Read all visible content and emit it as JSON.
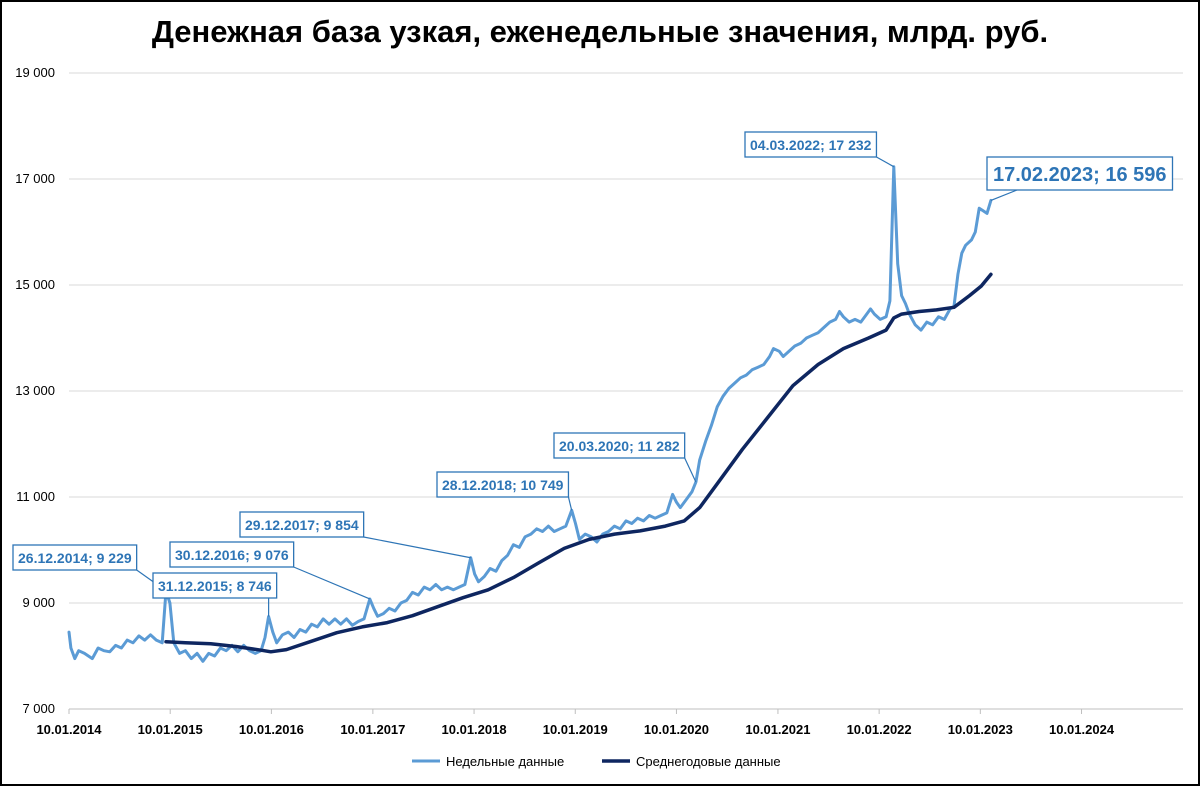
{
  "chart_data": {
    "type": "line",
    "title": "Денежная база узкая, еженедельные значения, млрд. руб.",
    "xlabel": "",
    "ylabel": "",
    "ylim": [
      7000,
      19000
    ],
    "y_ticks": [
      7000,
      9000,
      11000,
      13000,
      15000,
      17000,
      19000
    ],
    "y_tick_labels": [
      "7 000",
      "9 000",
      "11 000",
      "13 000",
      "15 000",
      "17 000",
      "19 000"
    ],
    "x_range": [
      "2014-01-10",
      "2025-01-10"
    ],
    "x_ticks": [
      "2014-01-10",
      "2015-01-10",
      "2016-01-10",
      "2017-01-10",
      "2018-01-10",
      "2019-01-10",
      "2020-01-10",
      "2021-01-10",
      "2022-01-10",
      "2023-01-10",
      "2024-01-10"
    ],
    "x_tick_labels": [
      "10.01.2014",
      "10.01.2015",
      "10.01.2016",
      "10.01.2017",
      "10.01.2018",
      "10.01.2019",
      "10.01.2020",
      "10.01.2021",
      "10.01.2022",
      "10.01.2023",
      "10.01.2024"
    ],
    "grid": "horizontal",
    "legend_position": "bottom",
    "series": [
      {
        "name": "Недельные данные",
        "color": "#5b9bd5",
        "points": [
          [
            "2014-01-10",
            8450
          ],
          [
            "2014-01-17",
            8150
          ],
          [
            "2014-01-31",
            7950
          ],
          [
            "2014-02-14",
            8100
          ],
          [
            "2014-03-07",
            8050
          ],
          [
            "2014-04-04",
            7950
          ],
          [
            "2014-04-25",
            8150
          ],
          [
            "2014-05-16",
            8100
          ],
          [
            "2014-06-06",
            8080
          ],
          [
            "2014-06-27",
            8200
          ],
          [
            "2014-07-18",
            8150
          ],
          [
            "2014-08-08",
            8300
          ],
          [
            "2014-08-29",
            8250
          ],
          [
            "2014-09-19",
            8380
          ],
          [
            "2014-10-10",
            8300
          ],
          [
            "2014-10-31",
            8400
          ],
          [
            "2014-11-21",
            8300
          ],
          [
            "2014-12-12",
            8250
          ],
          [
            "2014-12-26",
            9229
          ],
          [
            "2015-01-09",
            9000
          ],
          [
            "2015-01-23",
            8250
          ],
          [
            "2015-02-13",
            8050
          ],
          [
            "2015-03-06",
            8100
          ],
          [
            "2015-03-27",
            7950
          ],
          [
            "2015-04-17",
            8050
          ],
          [
            "2015-05-08",
            7900
          ],
          [
            "2015-05-29",
            8050
          ],
          [
            "2015-06-19",
            8000
          ],
          [
            "2015-07-10",
            8150
          ],
          [
            "2015-07-31",
            8100
          ],
          [
            "2015-08-21",
            8200
          ],
          [
            "2015-09-11",
            8080
          ],
          [
            "2015-10-02",
            8200
          ],
          [
            "2015-10-23",
            8100
          ],
          [
            "2015-11-13",
            8050
          ],
          [
            "2015-12-04",
            8100
          ],
          [
            "2015-12-18",
            8350
          ],
          [
            "2015-12-31",
            8746
          ],
          [
            "2016-01-15",
            8450
          ],
          [
            "2016-01-29",
            8250
          ],
          [
            "2016-02-19",
            8400
          ],
          [
            "2016-03-11",
            8450
          ],
          [
            "2016-04-01",
            8350
          ],
          [
            "2016-04-22",
            8500
          ],
          [
            "2016-05-13",
            8450
          ],
          [
            "2016-06-03",
            8600
          ],
          [
            "2016-06-24",
            8550
          ],
          [
            "2016-07-15",
            8700
          ],
          [
            "2016-08-05",
            8600
          ],
          [
            "2016-08-26",
            8700
          ],
          [
            "2016-09-16",
            8600
          ],
          [
            "2016-10-07",
            8700
          ],
          [
            "2016-10-28",
            8580
          ],
          [
            "2016-11-18",
            8650
          ],
          [
            "2016-12-09",
            8700
          ],
          [
            "2016-12-30",
            9076
          ],
          [
            "2017-01-13",
            8900
          ],
          [
            "2017-01-27",
            8750
          ],
          [
            "2017-02-17",
            8800
          ],
          [
            "2017-03-10",
            8900
          ],
          [
            "2017-03-31",
            8850
          ],
          [
            "2017-04-21",
            9000
          ],
          [
            "2017-05-12",
            9050
          ],
          [
            "2017-06-02",
            9200
          ],
          [
            "2017-06-23",
            9150
          ],
          [
            "2017-07-14",
            9300
          ],
          [
            "2017-08-04",
            9250
          ],
          [
            "2017-08-25",
            9350
          ],
          [
            "2017-09-15",
            9250
          ],
          [
            "2017-10-06",
            9300
          ],
          [
            "2017-10-27",
            9250
          ],
          [
            "2017-11-17",
            9300
          ],
          [
            "2017-12-08",
            9350
          ],
          [
            "2017-12-29",
            9854
          ],
          [
            "2018-01-12",
            9550
          ],
          [
            "2018-01-26",
            9400
          ],
          [
            "2018-02-16",
            9500
          ],
          [
            "2018-03-09",
            9650
          ],
          [
            "2018-03-30",
            9600
          ],
          [
            "2018-04-20",
            9800
          ],
          [
            "2018-05-11",
            9900
          ],
          [
            "2018-06-01",
            10100
          ],
          [
            "2018-06-22",
            10050
          ],
          [
            "2018-07-13",
            10250
          ],
          [
            "2018-08-03",
            10300
          ],
          [
            "2018-08-24",
            10400
          ],
          [
            "2018-09-14",
            10350
          ],
          [
            "2018-10-05",
            10450
          ],
          [
            "2018-10-26",
            10350
          ],
          [
            "2018-11-16",
            10400
          ],
          [
            "2018-12-07",
            10450
          ],
          [
            "2018-12-28",
            10749
          ],
          [
            "2019-01-11",
            10500
          ],
          [
            "2019-01-25",
            10200
          ],
          [
            "2019-02-15",
            10300
          ],
          [
            "2019-03-08",
            10250
          ],
          [
            "2019-03-29",
            10150
          ],
          [
            "2019-04-19",
            10300
          ],
          [
            "2019-05-10",
            10350
          ],
          [
            "2019-05-31",
            10450
          ],
          [
            "2019-06-21",
            10400
          ],
          [
            "2019-07-12",
            10550
          ],
          [
            "2019-08-02",
            10500
          ],
          [
            "2019-08-23",
            10600
          ],
          [
            "2019-09-13",
            10550
          ],
          [
            "2019-10-04",
            10650
          ],
          [
            "2019-10-25",
            10600
          ],
          [
            "2019-11-15",
            10650
          ],
          [
            "2019-12-06",
            10700
          ],
          [
            "2019-12-27",
            11050
          ],
          [
            "2020-01-10",
            10900
          ],
          [
            "2020-01-24",
            10800
          ],
          [
            "2020-02-14",
            10950
          ],
          [
            "2020-03-06",
            11100
          ],
          [
            "2020-03-20",
            11282
          ],
          [
            "2020-04-03",
            11700
          ],
          [
            "2020-04-24",
            12050
          ],
          [
            "2020-05-15",
            12350
          ],
          [
            "2020-06-05",
            12700
          ],
          [
            "2020-06-26",
            12900
          ],
          [
            "2020-07-17",
            13050
          ],
          [
            "2020-08-07",
            13150
          ],
          [
            "2020-08-28",
            13250
          ],
          [
            "2020-09-18",
            13300
          ],
          [
            "2020-10-09",
            13400
          ],
          [
            "2020-10-30",
            13450
          ],
          [
            "2020-11-20",
            13500
          ],
          [
            "2020-12-11",
            13650
          ],
          [
            "2020-12-25",
            13800
          ],
          [
            "2021-01-15",
            13750
          ],
          [
            "2021-01-29",
            13650
          ],
          [
            "2021-02-19",
            13750
          ],
          [
            "2021-03-12",
            13850
          ],
          [
            "2021-04-02",
            13900
          ],
          [
            "2021-04-23",
            14000
          ],
          [
            "2021-05-14",
            14050
          ],
          [
            "2021-06-04",
            14100
          ],
          [
            "2021-06-25",
            14200
          ],
          [
            "2021-07-16",
            14300
          ],
          [
            "2021-08-06",
            14350
          ],
          [
            "2021-08-20",
            14500
          ],
          [
            "2021-09-03",
            14400
          ],
          [
            "2021-09-24",
            14300
          ],
          [
            "2021-10-15",
            14350
          ],
          [
            "2021-11-05",
            14300
          ],
          [
            "2021-11-26",
            14450
          ],
          [
            "2021-12-10",
            14550
          ],
          [
            "2021-12-24",
            14450
          ],
          [
            "2022-01-14",
            14350
          ],
          [
            "2022-02-04",
            14400
          ],
          [
            "2022-02-18",
            14700
          ],
          [
            "2022-03-04",
            17232
          ],
          [
            "2022-03-18",
            15400
          ],
          [
            "2022-04-01",
            14800
          ],
          [
            "2022-04-15",
            14650
          ],
          [
            "2022-04-29",
            14450
          ],
          [
            "2022-05-20",
            14250
          ],
          [
            "2022-06-10",
            14150
          ],
          [
            "2022-07-01",
            14300
          ],
          [
            "2022-07-22",
            14250
          ],
          [
            "2022-08-12",
            14400
          ],
          [
            "2022-09-02",
            14350
          ],
          [
            "2022-09-23",
            14550
          ],
          [
            "2022-10-07",
            14600
          ],
          [
            "2022-10-21",
            15200
          ],
          [
            "2022-11-04",
            15600
          ],
          [
            "2022-11-18",
            15750
          ],
          [
            "2022-12-09",
            15850
          ],
          [
            "2022-12-23",
            16000
          ],
          [
            "2023-01-06",
            16450
          ],
          [
            "2023-01-20",
            16400
          ],
          [
            "2023-02-03",
            16350
          ],
          [
            "2023-02-17",
            16596
          ]
        ]
      },
      {
        "name": "Среднегодовые данные",
        "color": "#0e2660",
        "points": [
          [
            "2014-12-26",
            8270
          ],
          [
            "2015-03-06",
            8250
          ],
          [
            "2015-06-05",
            8230
          ],
          [
            "2015-09-04",
            8180
          ],
          [
            "2015-12-04",
            8110
          ],
          [
            "2016-01-08",
            8080
          ],
          [
            "2016-03-04",
            8120
          ],
          [
            "2016-06-03",
            8280
          ],
          [
            "2016-09-02",
            8440
          ],
          [
            "2016-12-02",
            8550
          ],
          [
            "2017-03-03",
            8630
          ],
          [
            "2017-06-02",
            8760
          ],
          [
            "2017-09-01",
            8930
          ],
          [
            "2017-12-01",
            9100
          ],
          [
            "2018-03-02",
            9250
          ],
          [
            "2018-06-01",
            9480
          ],
          [
            "2018-09-01",
            9760
          ],
          [
            "2018-12-01",
            10030
          ],
          [
            "2019-03-01",
            10200
          ],
          [
            "2019-06-01",
            10300
          ],
          [
            "2019-09-01",
            10360
          ],
          [
            "2019-12-01",
            10450
          ],
          [
            "2020-02-07",
            10550
          ],
          [
            "2020-04-03",
            10800
          ],
          [
            "2020-06-05",
            11250
          ],
          [
            "2020-09-04",
            11900
          ],
          [
            "2020-12-04",
            12500
          ],
          [
            "2021-03-05",
            13100
          ],
          [
            "2021-06-04",
            13500
          ],
          [
            "2021-09-03",
            13800
          ],
          [
            "2021-12-03",
            14000
          ],
          [
            "2022-02-04",
            14150
          ],
          [
            "2022-03-04",
            14380
          ],
          [
            "2022-04-01",
            14450
          ],
          [
            "2022-06-03",
            14500
          ],
          [
            "2022-08-05",
            14530
          ],
          [
            "2022-10-07",
            14580
          ],
          [
            "2022-12-02",
            14800
          ],
          [
            "2023-01-13",
            14980
          ],
          [
            "2023-02-17",
            15200
          ]
        ]
      }
    ],
    "annotations": [
      {
        "label": "26.12.2014; 9 229",
        "date": "2014-12-26",
        "value": 9229,
        "size": "normal"
      },
      {
        "label": "31.12.2015; 8 746",
        "date": "2015-12-31",
        "value": 8746,
        "size": "normal"
      },
      {
        "label": "30.12.2016; 9 076",
        "date": "2016-12-30",
        "value": 9076,
        "size": "normal"
      },
      {
        "label": "29.12.2017; 9 854",
        "date": "2017-12-29",
        "value": 9854,
        "size": "normal"
      },
      {
        "label": "28.12.2018; 10 749",
        "date": "2018-12-28",
        "value": 10749,
        "size": "normal"
      },
      {
        "label": "20.03.2020; 11 282",
        "date": "2020-03-20",
        "value": 11282,
        "size": "normal"
      },
      {
        "label": "04.03.2022; 17 232",
        "date": "2022-03-04",
        "value": 17232,
        "size": "normal"
      },
      {
        "label": "17.02.2023; 16 596",
        "date": "2023-02-17",
        "value": 16596,
        "size": "big"
      }
    ],
    "legend": [
      "Недельные данные",
      "Среднегодовые данные"
    ]
  }
}
